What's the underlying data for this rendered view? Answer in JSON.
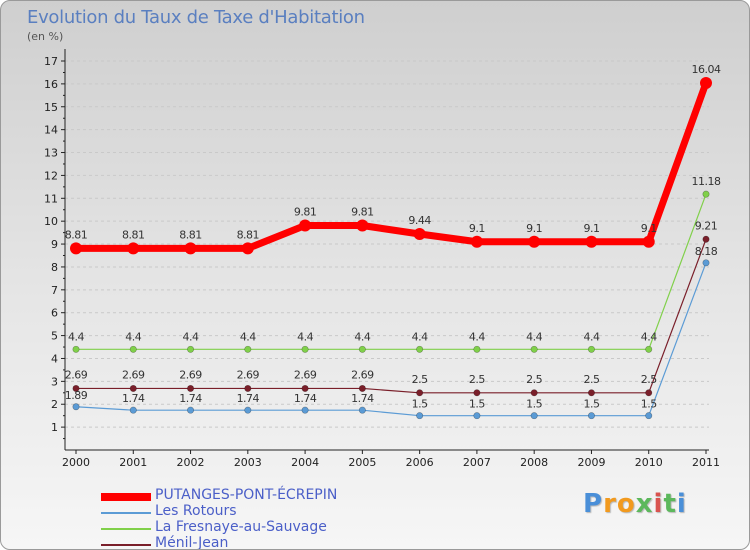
{
  "header": {
    "title": "Evolution du Taux de Taxe d'Habitation",
    "unit": "(en %)"
  },
  "logo": {
    "text": "Proxiti"
  },
  "colors": {
    "putanges": "#ff0000",
    "rotours": "#5b9bd5",
    "fresnaye": "#80d04a",
    "menil": "#7a1f2a",
    "axis": "#222222",
    "grid": "#c9c9c9"
  },
  "chart_data": {
    "type": "line",
    "title": "Evolution du Taux de Taxe d'Habitation",
    "ylabel": "(en %)",
    "xlabel": "",
    "x": [
      "2000",
      "2001",
      "2002",
      "2003",
      "2004",
      "2005",
      "2006",
      "2007",
      "2008",
      "2009",
      "2010",
      "2011"
    ],
    "ylim": [
      0,
      17
    ],
    "yticks": [
      1,
      2,
      3,
      4,
      5,
      6,
      7,
      8,
      9,
      10,
      11,
      12,
      13,
      14,
      15,
      16,
      17
    ],
    "grid": "horizontal dashed",
    "legend_position": "bottom-left",
    "series": [
      {
        "name": "PUTANGES-PONT-ÉCREPIN",
        "color": "#ff0000",
        "values": [
          8.81,
          8.81,
          8.81,
          8.81,
          9.81,
          9.81,
          9.44,
          9.1,
          9.1,
          9.1,
          9.1,
          16.04
        ],
        "labels": [
          "8.81",
          "8.81",
          "8.81",
          "8.81",
          "9.81",
          "9.81",
          "9.44",
          "9.1",
          "9.1",
          "9.1",
          "9.1",
          "16.04"
        ]
      },
      {
        "name": "Les Rotours",
        "color": "#5b9bd5",
        "values": [
          1.89,
          1.74,
          1.74,
          1.74,
          1.74,
          1.74,
          1.5,
          1.5,
          1.5,
          1.5,
          1.5,
          8.18
        ],
        "labels": [
          "1.89",
          "1.74",
          "1.74",
          "1.74",
          "1.74",
          "1.74",
          "1.5",
          "1.5",
          "1.5",
          "1.5",
          "1.5",
          "8.18"
        ]
      },
      {
        "name": "La Fresnaye-au-Sauvage",
        "color": "#80d04a",
        "values": [
          4.4,
          4.4,
          4.4,
          4.4,
          4.4,
          4.4,
          4.4,
          4.4,
          4.4,
          4.4,
          4.4,
          11.18
        ],
        "labels": [
          "4.4",
          "4.4",
          "4.4",
          "4.4",
          "4.4",
          "4.4",
          "4.4",
          "4.4",
          "4.4",
          "4.4",
          "4.4",
          "11.18"
        ]
      },
      {
        "name": "Ménil-Jean",
        "color": "#7a1f2a",
        "values": [
          2.69,
          2.69,
          2.69,
          2.69,
          2.69,
          2.69,
          2.5,
          2.5,
          2.5,
          2.5,
          2.5,
          9.21
        ],
        "labels": [
          "2.69",
          "2.69",
          "2.69",
          "2.69",
          "2.69",
          "2.69",
          "2.5",
          "2.5",
          "2.5",
          "2.5",
          "2.5",
          "9.21"
        ]
      }
    ]
  }
}
